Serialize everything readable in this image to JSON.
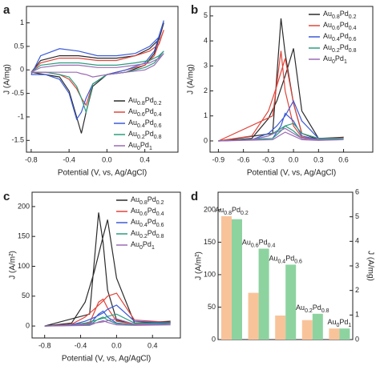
{
  "chart_data": [
    {
      "type": "line",
      "panel_label": "a",
      "xlabel": "Potential (V, vs, Ag/AgCl)",
      "ylabel": "J (A/mg)",
      "xlim": [
        -0.85,
        0.75
      ],
      "ylim": [
        -1.75,
        1.35
      ],
      "xticks": [
        -0.8,
        -0.4,
        {
          "value": 0,
          "label": "0.0"
        },
        0.4
      ],
      "yticks": [
        1,
        0.5,
        0,
        -0.5,
        -1,
        -1.5
      ],
      "legend": "lower right",
      "series": [
        {
          "name": "Au0.8Pd0.2",
          "color": "#2b2b2b",
          "x": [
            -0.8,
            -0.7,
            -0.5,
            -0.3,
            -0.1,
            0.1,
            0.3,
            0.45,
            0.55,
            0.6,
            0.5,
            0.4,
            0.2,
            0.0,
            -0.15,
            -0.22,
            -0.27,
            -0.32,
            -0.4,
            -0.5,
            -0.65,
            -0.8
          ],
          "values": [
            -0.05,
            0.2,
            0.3,
            0.3,
            0.25,
            0.25,
            0.3,
            0.45,
            0.65,
            1.0,
            0.35,
            0.1,
            -0.05,
            -0.1,
            -0.35,
            -0.9,
            -1.35,
            -1.0,
            -0.45,
            -0.15,
            -0.1,
            -0.05
          ]
        },
        {
          "name": "Au0.6Pd0.4",
          "color": "#e0453a",
          "x": [
            -0.8,
            -0.7,
            -0.5,
            -0.3,
            -0.1,
            0.1,
            0.3,
            0.45,
            0.55,
            0.6,
            0.5,
            0.4,
            0.2,
            0.0,
            -0.15,
            -0.22,
            -0.27,
            -0.32,
            -0.4,
            -0.5,
            -0.65,
            -0.8
          ],
          "values": [
            -0.05,
            0.15,
            0.25,
            0.25,
            0.2,
            0.2,
            0.3,
            0.4,
            0.55,
            0.85,
            0.3,
            0.1,
            0.0,
            -0.1,
            -0.3,
            -0.75,
            -0.6,
            -0.4,
            -0.2,
            -0.1,
            -0.05,
            -0.05
          ]
        },
        {
          "name": "Au0.4Pd0.6",
          "color": "#3b5bd6",
          "x": [
            -0.8,
            -0.7,
            -0.5,
            -0.3,
            -0.1,
            0.1,
            0.3,
            0.45,
            0.55,
            0.6,
            0.5,
            0.4,
            0.2,
            0.0,
            -0.15,
            -0.22,
            -0.27,
            -0.32,
            -0.4,
            -0.5,
            -0.65,
            -0.8
          ],
          "values": [
            -0.1,
            0.3,
            0.45,
            0.4,
            0.3,
            0.3,
            0.35,
            0.5,
            0.7,
            1.05,
            0.4,
            0.15,
            0.0,
            -0.1,
            -0.3,
            -0.6,
            -0.9,
            -1.05,
            -0.5,
            -0.2,
            -0.1,
            -0.1
          ]
        },
        {
          "name": "Au0.2Pd0.8",
          "color": "#2a9d7f",
          "x": [
            -0.8,
            -0.7,
            -0.5,
            -0.3,
            -0.1,
            0.1,
            0.3,
            0.45,
            0.55,
            0.6,
            0.5,
            0.4,
            0.2,
            0.0,
            -0.15,
            -0.22,
            -0.27,
            -0.32,
            -0.4,
            -0.5,
            -0.65,
            -0.8
          ],
          "values": [
            -0.05,
            0.1,
            0.15,
            0.15,
            0.1,
            0.1,
            0.15,
            0.2,
            0.3,
            0.4,
            0.15,
            0.05,
            -0.05,
            -0.1,
            -0.3,
            -0.9,
            -0.6,
            -0.35,
            -0.15,
            -0.1,
            -0.05,
            -0.05
          ]
        },
        {
          "name": "Au0Pd1",
          "color": "#9b6bb5",
          "x": [
            -0.8,
            -0.7,
            -0.5,
            -0.3,
            -0.1,
            0.1,
            0.3,
            0.45,
            0.55,
            0.6,
            0.5,
            0.4,
            0.2,
            0.0,
            -0.15,
            -0.22,
            -0.27,
            -0.32,
            -0.4,
            -0.5,
            -0.65,
            -0.8
          ],
          "values": [
            -0.05,
            0.05,
            0.1,
            0.1,
            0.05,
            0.05,
            0.1,
            0.15,
            0.25,
            0.35,
            0.1,
            0.0,
            -0.05,
            -0.1,
            -0.15,
            -0.1,
            -0.08,
            -0.05,
            -0.05,
            -0.05,
            -0.05,
            -0.05
          ]
        }
      ]
    },
    {
      "type": "line",
      "panel_label": "b",
      "xlabel": "Potential (V, vs, Ag/AgCl)",
      "ylabel": "J (A/mg)",
      "xlim": [
        -1.0,
        0.95
      ],
      "ylim": [
        -0.45,
        5.38
      ],
      "xticks": [
        -0.9,
        -0.6,
        -0.3,
        {
          "value": 0,
          "label": "0.0"
        },
        0.3,
        0.6
      ],
      "yticks": [
        0,
        1,
        2,
        3,
        4,
        5
      ],
      "legend": "upper right",
      "series": [
        {
          "name": "Au0.8Pd0.2",
          "color": "#2b2b2b",
          "x": [
            -0.9,
            -0.5,
            -0.3,
            -0.2,
            -0.1,
            0.0,
            0.1,
            0.3,
            0.6,
            0.3,
            0.1,
            0.0,
            -0.1,
            -0.15,
            -0.25,
            -0.9
          ],
          "values": [
            0,
            0.1,
            0.9,
            1.6,
            2.6,
            3.7,
            1.2,
            0.1,
            0.15,
            0.05,
            0.3,
            1.5,
            3.5,
            4.9,
            0.3,
            0
          ]
        },
        {
          "name": "Au0.6Pd0.4",
          "color": "#e0453a",
          "x": [
            -0.9,
            -0.5,
            -0.3,
            -0.2,
            -0.1,
            0.0,
            0.1,
            0.3,
            0.6,
            0.3,
            0.1,
            0.0,
            -0.1,
            -0.15,
            -0.25,
            -0.9
          ],
          "values": [
            0,
            0.2,
            1.2,
            2.2,
            3.3,
            1.5,
            0.3,
            0.1,
            0.12,
            0.05,
            0.15,
            0.6,
            2.0,
            3.6,
            1.0,
            0
          ]
        },
        {
          "name": "Au0.4Pd0.6",
          "color": "#3b5bd6",
          "x": [
            -0.9,
            -0.5,
            -0.3,
            -0.2,
            -0.1,
            0.0,
            0.1,
            0.3,
            0.6,
            0.3,
            0.1,
            0.0,
            -0.1,
            -0.15,
            -0.25,
            -0.9
          ],
          "values": [
            0,
            0.05,
            0.3,
            0.6,
            1.0,
            1.6,
            0.8,
            0.1,
            0.1,
            0.05,
            0.2,
            0.8,
            1.1,
            0.6,
            0.1,
            0
          ]
        },
        {
          "name": "Au0.2Pd0.8",
          "color": "#2a9d7f",
          "x": [
            -0.9,
            -0.5,
            -0.3,
            -0.2,
            -0.1,
            0.0,
            0.1,
            0.3,
            0.6,
            0.3,
            0.1,
            0.0,
            -0.1,
            -0.15,
            -0.25,
            -0.9
          ],
          "values": [
            0,
            0.05,
            0.2,
            0.4,
            0.6,
            0.7,
            0.3,
            0.1,
            0.1,
            0.05,
            0.1,
            0.4,
            0.6,
            0.4,
            0.1,
            0
          ]
        },
        {
          "name": "Au0Pd1",
          "color": "#9b6bb5",
          "x": [
            -0.9,
            -0.5,
            -0.3,
            -0.2,
            -0.1,
            0.0,
            0.1,
            0.3,
            0.6,
            0.3,
            0.1,
            0.0,
            -0.1,
            -0.15,
            -0.25,
            -0.9
          ],
          "values": [
            0,
            0.05,
            0.2,
            0.35,
            0.5,
            0.3,
            0.1,
            0.05,
            0.05,
            0.02,
            0.05,
            0.2,
            0.35,
            0.25,
            0.05,
            0
          ]
        }
      ]
    },
    {
      "type": "line",
      "panel_label": "c",
      "xlabel": "Potential (V, vs, Ag/AgCl)",
      "ylabel": "J (A/m²)",
      "xlim": [
        -0.94,
        0.71
      ],
      "ylim": [
        -20,
        224
      ],
      "xticks": [
        -0.8,
        -0.4,
        {
          "value": 0,
          "label": "0.0"
        },
        0.4
      ],
      "yticks": [
        0,
        50,
        100,
        150,
        200
      ],
      "legend": "upper right",
      "series": [
        {
          "name": "Au0.8Pd0.2",
          "color": "#2b2b2b",
          "x": [
            -0.8,
            -0.5,
            -0.35,
            -0.25,
            -0.15,
            -0.1,
            0.0,
            0.2,
            0.6,
            0.2,
            0.0,
            -0.1,
            -0.15,
            -0.2,
            -0.3,
            -0.8
          ],
          "values": [
            0,
            5,
            40,
            90,
            150,
            178,
            80,
            5,
            8,
            3,
            10,
            60,
            140,
            190,
            20,
            0
          ]
        },
        {
          "name": "Au0.6Pd0.4",
          "color": "#e0453a",
          "x": [
            -0.8,
            -0.5,
            -0.35,
            -0.25,
            -0.15,
            -0.1,
            0.0,
            0.2,
            0.6,
            0.2,
            0.0,
            -0.1,
            -0.15,
            -0.2,
            -0.3,
            -0.8
          ],
          "values": [
            0,
            3,
            15,
            28,
            42,
            50,
            55,
            10,
            6,
            3,
            8,
            30,
            45,
            40,
            5,
            0
          ]
        },
        {
          "name": "Au0.4Pd0.6",
          "color": "#3b5bd6",
          "x": [
            -0.8,
            -0.5,
            -0.35,
            -0.25,
            -0.15,
            -0.1,
            0.0,
            0.2,
            0.6,
            0.2,
            0.0,
            -0.1,
            -0.15,
            -0.2,
            -0.3,
            -0.8
          ],
          "values": [
            0,
            2,
            8,
            14,
            22,
            28,
            35,
            8,
            5,
            2,
            5,
            15,
            25,
            20,
            3,
            0
          ]
        },
        {
          "name": "Au0.2Pd0.8",
          "color": "#2a9d7f",
          "x": [
            -0.8,
            -0.5,
            -0.35,
            -0.25,
            -0.15,
            -0.1,
            0.0,
            0.2,
            0.6,
            0.2,
            0.0,
            -0.1,
            -0.15,
            -0.2,
            -0.3,
            -0.8
          ],
          "values": [
            0,
            1,
            5,
            9,
            13,
            16,
            20,
            5,
            4,
            2,
            4,
            10,
            15,
            12,
            2,
            0
          ]
        },
        {
          "name": "Au0Pd1",
          "color": "#9b6bb5",
          "x": [
            -0.8,
            -0.5,
            -0.35,
            -0.25,
            -0.15,
            -0.1,
            0.0,
            0.2,
            0.6,
            0.2,
            0.0,
            -0.1,
            -0.15,
            -0.2,
            -0.3,
            -0.8
          ],
          "values": [
            0,
            1,
            3,
            5,
            7,
            9,
            12,
            3,
            2,
            1,
            2,
            6,
            9,
            7,
            1,
            0
          ]
        }
      ]
    },
    {
      "type": "bar",
      "panel_label": "d",
      "ylabel": "J (A/m²)",
      "y2label": "J (A/mg)",
      "categories": [
        "Au0.8Pd0.2",
        "Au0.6Pd0.4",
        "Au0.4Pd0.6",
        "Au0.2Pd0.8",
        "Au0Pd1"
      ],
      "ylim": [
        0,
        227
      ],
      "yticks": [
        0,
        50,
        100,
        150,
        200
      ],
      "y2lim": [
        0,
        6
      ],
      "y2ticks": [
        0,
        1,
        2,
        3,
        4,
        5,
        6
      ],
      "series": [
        {
          "color": "#f9c39a",
          "values": [
            190,
            72,
            37,
            30,
            17
          ]
        },
        {
          "color": "#8dd3a0",
          "axis": "y2",
          "values": [
            4.9,
            3.7,
            3.05,
            1.05,
            0.45
          ]
        }
      ]
    }
  ]
}
